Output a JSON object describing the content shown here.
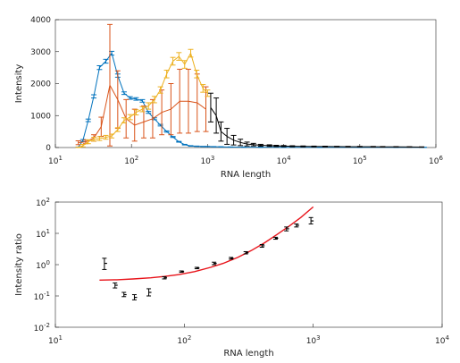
{
  "chart_data": [
    {
      "type": "line",
      "xlabel": "RNA length",
      "ylabel": "Intensity",
      "xscale": "log",
      "xlim": [
        10,
        1000000
      ],
      "ylim": [
        0,
        4000
      ],
      "yticks": [
        0,
        1000,
        2000,
        3000,
        4000
      ],
      "xticks": [
        {
          "base": "10",
          "exp": "1"
        },
        {
          "base": "10",
          "exp": "2"
        },
        {
          "base": "10",
          "exp": "3"
        },
        {
          "base": "10",
          "exp": "4"
        },
        {
          "base": "10",
          "exp": "5"
        },
        {
          "base": "10",
          "exp": "6"
        }
      ],
      "grid": false,
      "series": [
        {
          "color": "#0072BD",
          "x": [
            20,
            23,
            27,
            32,
            38,
            46,
            55,
            66,
            80,
            96,
            115,
            139,
            167,
            200,
            240,
            290,
            350,
            420,
            500,
            600,
            720,
            870,
            1000,
            1200,
            1500,
            2000,
            3000,
            5000,
            10000,
            30000,
            100000,
            300000,
            700000
          ],
          "y": [
            10,
            220,
            850,
            1600,
            2500,
            2700,
            2950,
            2250,
            1700,
            1550,
            1520,
            1460,
            1100,
            900,
            700,
            500,
            330,
            180,
            90,
            50,
            40,
            30,
            30,
            25,
            20,
            15,
            12,
            10,
            8,
            6,
            5,
            5,
            5
          ],
          "err": [
            5,
            30,
            40,
            50,
            60,
            60,
            60,
            50,
            40,
            40,
            40,
            40,
            30,
            30,
            25,
            20,
            15,
            12,
            10,
            8,
            6,
            5,
            5,
            5,
            4,
            4,
            4,
            3,
            3,
            3,
            2,
            2,
            2
          ]
        },
        {
          "color": "#D95319",
          "x": [
            20,
            25,
            32,
            40,
            52,
            66,
            85,
            110,
            145,
            190,
            250,
            330,
            430,
            560,
            730,
            950
          ],
          "y": [
            150,
            180,
            300,
            650,
            1950,
            1500,
            900,
            700,
            800,
            900,
            1100,
            1200,
            1450,
            1450,
            1400,
            1200
          ],
          "err": [
            60,
            60,
            100,
            300,
            1900,
            900,
            600,
            500,
            500,
            600,
            700,
            800,
            1000,
            1000,
            900,
            700
          ]
        },
        {
          "color": "#EDB120",
          "x": [
            20,
            23,
            27,
            32,
            38,
            46,
            55,
            66,
            80,
            96,
            115,
            139,
            167,
            200,
            240,
            290,
            350,
            420,
            500,
            600,
            720,
            870,
            1000
          ],
          "y": [
            5,
            60,
            180,
            260,
            280,
            320,
            360,
            560,
            850,
            950,
            1100,
            1200,
            1300,
            1500,
            1800,
            2300,
            2700,
            2850,
            2600,
            2950,
            2300,
            1850,
            1700
          ],
          "err": [
            5,
            40,
            60,
            60,
            60,
            60,
            60,
            60,
            80,
            80,
            80,
            80,
            100,
            100,
            100,
            120,
            120,
            120,
            120,
            120,
            120,
            120,
            100
          ]
        },
        {
          "color": "#000000",
          "x": [
            1100,
            1300,
            1500,
            1800,
            2200,
            2700,
            3300,
            4000,
            5000,
            6500,
            8000,
            10000,
            13000,
            18000,
            25000,
            35000,
            50000,
            70000,
            100000,
            150000,
            200000,
            300000,
            450000,
            650000
          ],
          "y": [
            1250,
            1000,
            500,
            350,
            230,
            160,
            110,
            90,
            70,
            60,
            50,
            45,
            40,
            35,
            32,
            30,
            28,
            26,
            25,
            24,
            22,
            20,
            18,
            15
          ],
          "err": [
            450,
            550,
            300,
            250,
            150,
            100,
            60,
            40,
            30,
            25,
            20,
            18,
            15,
            14,
            12,
            12,
            10,
            10,
            10,
            9,
            8,
            8,
            7,
            6
          ]
        }
      ]
    },
    {
      "type": "scatter",
      "xlabel": "RNA length",
      "ylabel": "Intensity ratio",
      "xscale": "log",
      "yscale": "log",
      "xlim": [
        10,
        10000
      ],
      "ylim": [
        0.01,
        100
      ],
      "xticks": [
        {
          "base": "10",
          "exp": "1"
        },
        {
          "base": "10",
          "exp": "2"
        },
        {
          "base": "10",
          "exp": "3"
        },
        {
          "base": "10",
          "exp": "4"
        }
      ],
      "yticks": [
        {
          "base": "10",
          "exp": "-2"
        },
        {
          "base": "10",
          "exp": "-1"
        },
        {
          "base": "10",
          "exp": "0"
        },
        {
          "base": "10",
          "exp": "1"
        },
        {
          "base": "10",
          "exp": "2"
        }
      ],
      "grid": false,
      "points": {
        "color": "#000000",
        "x": [
          24,
          29,
          34,
          41,
          53,
          70,
          95,
          125,
          170,
          230,
          300,
          400,
          510,
          620,
          740,
          960
        ],
        "y": [
          1.1,
          0.22,
          0.11,
          0.09,
          0.13,
          0.38,
          0.6,
          0.78,
          1.1,
          1.6,
          2.4,
          4.0,
          7.0,
          14,
          18,
          25
        ],
        "err_low": [
          0.7,
          0.18,
          0.095,
          0.075,
          0.1,
          0.35,
          0.57,
          0.74,
          1.0,
          1.5,
          2.2,
          3.6,
          6.5,
          12,
          16,
          20
        ],
        "err_high": [
          1.6,
          0.26,
          0.13,
          0.11,
          0.17,
          0.41,
          0.63,
          0.82,
          1.2,
          1.7,
          2.6,
          4.4,
          7.5,
          16,
          20,
          32
        ]
      },
      "fit": {
        "color": "#E8141B",
        "x": [
          22,
          30,
          40,
          55,
          70,
          90,
          120,
          160,
          200,
          260,
          330,
          420,
          520,
          650,
          800,
          1000
        ],
        "y": [
          0.32,
          0.33,
          0.35,
          0.38,
          0.42,
          0.48,
          0.6,
          0.82,
          1.1,
          1.7,
          2.8,
          5.0,
          9.0,
          17,
          32,
          70
        ]
      }
    }
  ]
}
